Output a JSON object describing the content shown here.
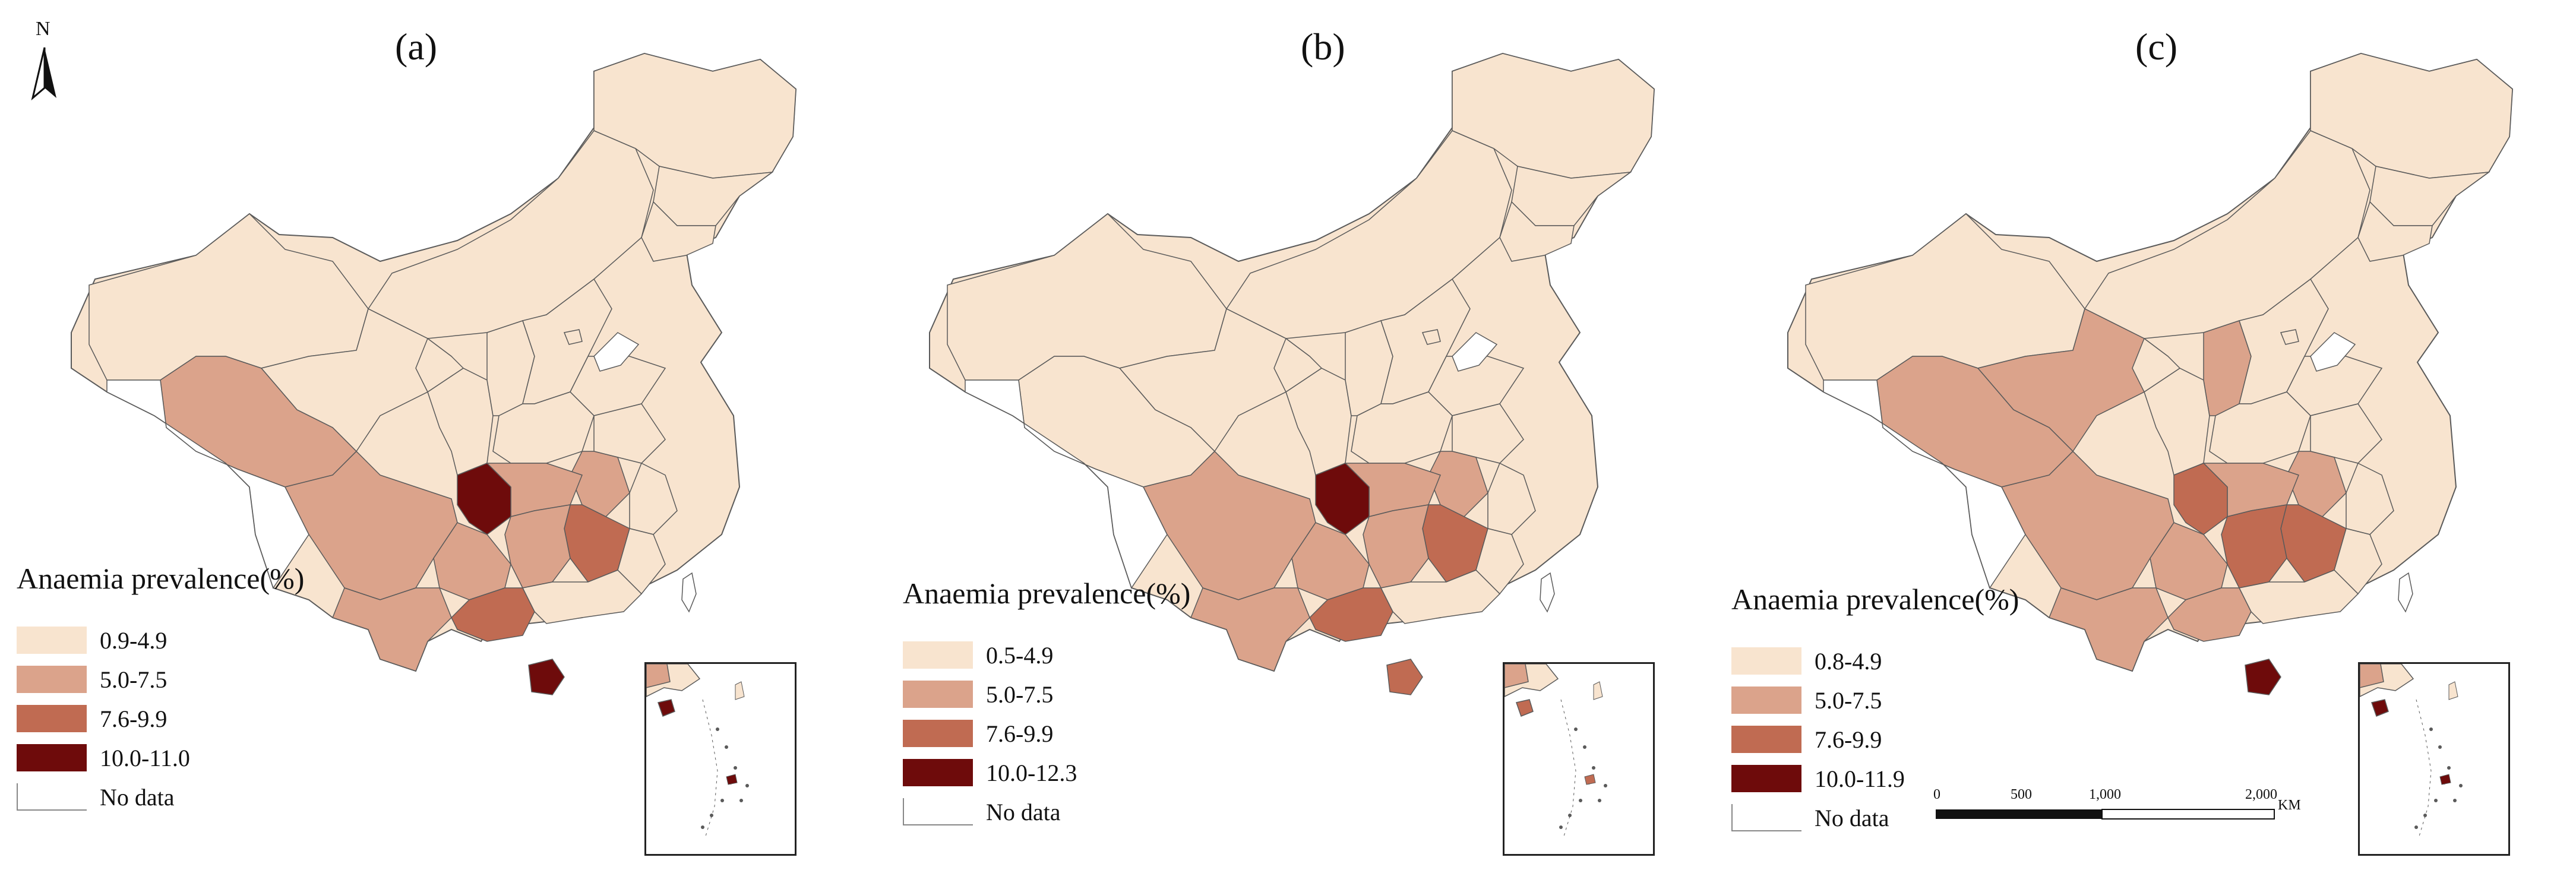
{
  "colors": {
    "c1": "#f8e4cf",
    "c2": "#dba38b",
    "c3": "#c06b52",
    "c4": "#6e0b0b",
    "border": "#5a5a5a",
    "nodata": "#ffffff"
  },
  "north_arrow": {
    "label": "N"
  },
  "panels": [
    {
      "label": "(a)",
      "legend_title": "Anaemia prevalence(%)",
      "legend": [
        "0.9-4.9",
        "5.0-7.5",
        "7.6-9.9",
        "10.0-11.0",
        "No data"
      ]
    },
    {
      "label": "(b)",
      "legend_title": "Anaemia prevalence(%)",
      "legend": [
        "0.5-4.9",
        "5.0-7.5",
        "7.6-9.9",
        "10.0-12.3",
        "No data"
      ]
    },
    {
      "label": "(c)",
      "legend_title": "Anaemia prevalence(%)",
      "legend": [
        "0.8-4.9",
        "5.0-7.5",
        "7.6-9.9",
        "10.0-11.9",
        "No data"
      ]
    }
  ],
  "scale_bar": {
    "ticks": [
      "0",
      "500",
      "1,000",
      "2,000"
    ],
    "unit": "KM"
  }
}
